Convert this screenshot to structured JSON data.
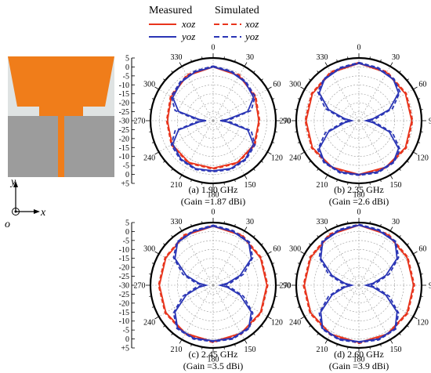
{
  "legend": {
    "measured_label": "Measured",
    "simulated_label": "Simulated",
    "xoz_label": "xoz",
    "yoz_label": "yoz",
    "placement": "top"
  },
  "colors": {
    "xoz": "#e8341c",
    "yoz": "#2a35b5",
    "grid": "#9a9a9a",
    "copper": "#f07d1a",
    "substrate": "#dfe3e3",
    "ground": "#9c9c9c"
  },
  "axes_label": {
    "y": "y",
    "x": "x",
    "o": "o"
  },
  "radial_ticks": [
    "5",
    "0",
    "-5",
    "-10",
    "-15",
    "-20",
    "-25",
    "-30",
    "-25",
    "-20",
    "-15",
    "-10",
    "-5",
    "0",
    "+5"
  ],
  "chart_data": [
    {
      "type": "polar",
      "caption_line1": "(a) 1.90 GHz",
      "caption_line2": "(Gain =1.87 dBi)",
      "angle_labels": [
        "0",
        "30",
        "60",
        "90",
        "120",
        "150",
        "180",
        "210",
        "240",
        "270",
        "300",
        "330"
      ],
      "r_range_db": [
        -30,
        5
      ],
      "series": [
        {
          "name": "xoz",
          "style": "measured",
          "angles_deg": [
            0,
            30,
            60,
            90,
            120,
            150,
            180,
            210,
            240,
            270,
            300,
            330
          ],
          "values_db": [
            0,
            -1,
            -3,
            -4.5,
            -3.5,
            -3,
            -3.5,
            -3,
            -3.5,
            -4.5,
            -3,
            -1
          ]
        },
        {
          "name": "xoz",
          "style": "simulated",
          "angles_deg": [
            0,
            30,
            60,
            90,
            120,
            150,
            180,
            210,
            240,
            270,
            300,
            330
          ],
          "values_db": [
            0.5,
            -0.5,
            -2.5,
            -4,
            -3,
            -2.5,
            -3,
            -2.5,
            -3,
            -4,
            -2.5,
            -0.5
          ]
        },
        {
          "name": "yoz",
          "style": "measured",
          "angles_deg": [
            0,
            20,
            40,
            60,
            75,
            85,
            90,
            95,
            105,
            120,
            140,
            160,
            180,
            200,
            220,
            240,
            255,
            265,
            270,
            275,
            285,
            300,
            320,
            340
          ],
          "values_db": [
            0,
            -1,
            -2,
            -4,
            -10,
            -22,
            -26,
            -22,
            -10,
            -4,
            -2,
            -1.5,
            -2,
            -1.5,
            -2,
            -4,
            -10,
            -22,
            -26,
            -22,
            -10,
            -4,
            -2,
            -1
          ]
        },
        {
          "name": "yoz",
          "style": "simulated",
          "angles_deg": [
            0,
            20,
            40,
            60,
            75,
            85,
            90,
            95,
            105,
            120,
            140,
            160,
            180,
            200,
            220,
            240,
            255,
            265,
            270,
            275,
            285,
            300,
            320,
            340
          ],
          "values_db": [
            0.5,
            -0.5,
            -1.5,
            -3,
            -8,
            -20,
            -25,
            -20,
            -8,
            -3,
            -1.5,
            -1,
            -1.5,
            -1,
            -1.5,
            -3,
            -8,
            -20,
            -25,
            -20,
            -8,
            -3,
            -1.5,
            -0.5
          ]
        }
      ]
    },
    {
      "type": "polar",
      "caption_line1": "(b) 2.35 GHz",
      "caption_line2": "(Gain =2.6 dBi)",
      "angle_labels": [
        "0",
        "30",
        "60",
        "90",
        "120",
        "150",
        "180",
        "210",
        "240",
        "270",
        "300",
        "330"
      ],
      "r_range_db": [
        -30,
        5
      ],
      "series": [
        {
          "name": "xoz",
          "style": "measured",
          "angles_deg": [
            0,
            30,
            60,
            90,
            120,
            150,
            180,
            210,
            240,
            270,
            300,
            330
          ],
          "values_db": [
            2,
            1,
            0,
            -0.5,
            0,
            0,
            0,
            0,
            0,
            -0.5,
            0,
            1
          ]
        },
        {
          "name": "xoz",
          "style": "simulated",
          "angles_deg": [
            0,
            30,
            60,
            90,
            120,
            150,
            180,
            210,
            240,
            270,
            300,
            330
          ],
          "values_db": [
            2.5,
            1.5,
            0.5,
            0,
            0.5,
            0.5,
            0.5,
            0.5,
            0.5,
            0,
            0.5,
            1.5
          ]
        },
        {
          "name": "yoz",
          "style": "measured",
          "angles_deg": [
            0,
            20,
            40,
            55,
            70,
            82,
            90,
            98,
            110,
            125,
            140,
            160,
            180,
            200,
            220,
            235,
            250,
            262,
            270,
            278,
            290,
            305,
            320,
            340
          ],
          "values_db": [
            2,
            1,
            0,
            -3,
            -12,
            -22,
            -26,
            -22,
            -12,
            -3,
            0,
            0.5,
            0,
            0.5,
            0,
            -3,
            -12,
            -22,
            -26,
            -22,
            -12,
            -3,
            0,
            1
          ]
        },
        {
          "name": "yoz",
          "style": "simulated",
          "angles_deg": [
            0,
            20,
            40,
            55,
            70,
            82,
            90,
            98,
            110,
            125,
            140,
            160,
            180,
            200,
            220,
            235,
            250,
            262,
            270,
            278,
            290,
            305,
            320,
            340
          ],
          "values_db": [
            2.5,
            1.5,
            0.5,
            -2,
            -10,
            -20,
            -24,
            -20,
            -10,
            -2,
            0.5,
            1,
            0.5,
            1,
            0.5,
            -2,
            -10,
            -20,
            -24,
            -20,
            -10,
            -2,
            0.5,
            1.5
          ]
        }
      ]
    },
    {
      "type": "polar",
      "caption_line1": "(c) 2.45 GHz",
      "caption_line2": "(Gain =3.5 dBi)",
      "angle_labels": [
        "0",
        "30",
        "60",
        "90",
        "120",
        "150",
        "180",
        "210",
        "240",
        "270",
        "300",
        "330"
      ],
      "r_range_db": [
        -30,
        5
      ],
      "series": [
        {
          "name": "xoz",
          "style": "measured",
          "angles_deg": [
            0,
            30,
            60,
            90,
            120,
            150,
            180,
            210,
            240,
            270,
            300,
            330
          ],
          "values_db": [
            3,
            2,
            0.5,
            0,
            0.5,
            1,
            1.5,
            1,
            0.5,
            0,
            0.5,
            2
          ]
        },
        {
          "name": "xoz",
          "style": "simulated",
          "angles_deg": [
            0,
            30,
            60,
            90,
            120,
            150,
            180,
            210,
            240,
            270,
            300,
            330
          ],
          "values_db": [
            3.5,
            2.5,
            1,
            0.5,
            1,
            1.5,
            2,
            1.5,
            1,
            0.5,
            1,
            2.5
          ]
        },
        {
          "name": "yoz",
          "style": "measured",
          "angles_deg": [
            0,
            20,
            40,
            55,
            70,
            82,
            90,
            98,
            110,
            125,
            140,
            160,
            180,
            200,
            220,
            235,
            250,
            262,
            270,
            278,
            290,
            305,
            320,
            340
          ],
          "values_db": [
            3,
            2,
            1,
            -4,
            -14,
            -22,
            -26,
            -22,
            -14,
            -4,
            1,
            1.5,
            1,
            1.5,
            1,
            -4,
            -14,
            -22,
            -26,
            -22,
            -14,
            -4,
            1,
            2
          ]
        },
        {
          "name": "yoz",
          "style": "simulated",
          "angles_deg": [
            0,
            20,
            40,
            55,
            70,
            82,
            90,
            98,
            110,
            125,
            140,
            160,
            180,
            200,
            220,
            235,
            250,
            262,
            270,
            278,
            290,
            305,
            320,
            340
          ],
          "values_db": [
            3.5,
            2.5,
            1.5,
            -3,
            -12,
            -20,
            -24,
            -20,
            -12,
            -3,
            1.5,
            2,
            1.5,
            2,
            1.5,
            -3,
            -12,
            -20,
            -24,
            -20,
            -12,
            -3,
            1.5,
            2.5
          ]
        }
      ]
    },
    {
      "type": "polar",
      "caption_line1": "(d) 2.60 GHz",
      "caption_line2": "(Gain =3.9 dBi)",
      "angle_labels": [
        "0",
        "30",
        "60",
        "90",
        "120",
        "150",
        "180",
        "210",
        "240",
        "270",
        "300",
        "330"
      ],
      "r_range_db": [
        -30,
        5
      ],
      "series": [
        {
          "name": "xoz",
          "style": "measured",
          "angles_deg": [
            0,
            30,
            60,
            90,
            120,
            150,
            180,
            210,
            240,
            270,
            300,
            330
          ],
          "values_db": [
            3.5,
            2.5,
            1,
            0.5,
            1,
            1.5,
            2,
            1.5,
            1,
            0.5,
            1,
            2.5
          ]
        },
        {
          "name": "xoz",
          "style": "simulated",
          "angles_deg": [
            0,
            30,
            60,
            90,
            120,
            150,
            180,
            210,
            240,
            270,
            300,
            330
          ],
          "values_db": [
            4,
            3,
            1.5,
            1,
            1.5,
            2,
            2.5,
            2,
            1.5,
            1,
            1.5,
            3
          ]
        },
        {
          "name": "yoz",
          "style": "measured",
          "angles_deg": [
            0,
            20,
            40,
            55,
            70,
            82,
            90,
            98,
            110,
            125,
            140,
            160,
            180,
            200,
            220,
            235,
            250,
            262,
            270,
            278,
            290,
            305,
            320,
            340
          ],
          "values_db": [
            3.5,
            2.5,
            1.5,
            -4,
            -14,
            -22,
            -26,
            -22,
            -14,
            -4,
            1.5,
            2,
            1.5,
            2,
            1.5,
            -4,
            -14,
            -22,
            -26,
            -22,
            -14,
            -4,
            1.5,
            2.5
          ]
        },
        {
          "name": "yoz",
          "style": "simulated",
          "angles_deg": [
            0,
            20,
            40,
            55,
            70,
            82,
            90,
            98,
            110,
            125,
            140,
            160,
            180,
            200,
            220,
            235,
            250,
            262,
            270,
            278,
            290,
            305,
            320,
            340
          ],
          "values_db": [
            4,
            3,
            2,
            -3,
            -12,
            -20,
            -24,
            -20,
            -12,
            -3,
            2,
            2.5,
            2,
            2.5,
            2,
            -3,
            -12,
            -20,
            -24,
            -20,
            -12,
            -3,
            2,
            3
          ]
        }
      ]
    }
  ]
}
